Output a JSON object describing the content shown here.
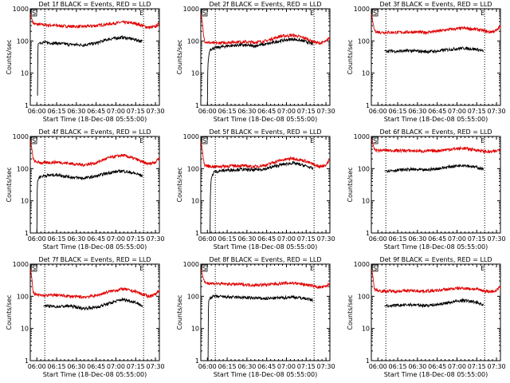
{
  "figure": {
    "xlabel": "Start Time (18-Dec-08 05:55:00)",
    "ylabel": "Counts/sec",
    "x_ticks": [
      "06:00",
      "06:15",
      "06:30",
      "06:45",
      "07:00",
      "07:15",
      "07:30"
    ],
    "y_ticks": [
      "1",
      "10",
      "100",
      "1000"
    ],
    "colors": {
      "events": "#000000",
      "lld": "#e00000",
      "axes": "#000000",
      "background": "#ffffff"
    }
  },
  "chart_data": [
    {
      "type": "line",
      "title": "Det 1f BLACK = Events, RED = LLD",
      "xlabel": "Start Time (18-Dec-08 05:55:00)",
      "ylabel": "Counts/sec",
      "x_unit": "minutes since 05:55",
      "xlim": [
        0,
        98
      ],
      "yscale": "log",
      "ylim": [
        1,
        1000
      ],
      "markers": {
        "left_label": "S",
        "right_label": "E",
        "dotted_lines_min": [
          11,
          86
        ]
      },
      "series": [
        {
          "name": "LLD",
          "color": "#e00000",
          "x": [
            0,
            1,
            2,
            3,
            5,
            10,
            20,
            30,
            40,
            50,
            60,
            70,
            80,
            85,
            90,
            95,
            98
          ],
          "y": [
            700,
            500,
            380,
            340,
            330,
            320,
            300,
            285,
            280,
            300,
            340,
            380,
            350,
            300,
            260,
            280,
            350
          ]
        },
        {
          "name": "Events",
          "color": "#000000",
          "x": [
            5.5,
            6,
            7,
            10,
            20,
            30,
            40,
            50,
            60,
            70,
            80,
            85
          ],
          "y": [
            2,
            80,
            88,
            90,
            85,
            78,
            75,
            85,
            115,
            130,
            110,
            95
          ]
        }
      ]
    },
    {
      "type": "line",
      "title": "Det 2f BLACK = Events, RED = LLD",
      "xlabel": "Start Time (18-Dec-08 05:55:00)",
      "ylabel": "Counts/sec",
      "x_unit": "minutes since 05:55",
      "xlim": [
        0,
        98
      ],
      "yscale": "log",
      "ylim": [
        1,
        1000
      ],
      "markers": {
        "left_label": "S",
        "right_label": "E",
        "dotted_lines_min": [
          11,
          86
        ]
      },
      "series": [
        {
          "name": "LLD",
          "color": "#e00000",
          "x": [
            0,
            1,
            2,
            3,
            5,
            10,
            20,
            30,
            40,
            50,
            60,
            70,
            80,
            85,
            90,
            95,
            98
          ],
          "y": [
            700,
            400,
            150,
            100,
            90,
            85,
            90,
            95,
            90,
            100,
            140,
            150,
            120,
            95,
            85,
            95,
            130
          ]
        },
        {
          "name": "Events",
          "color": "#000000",
          "x": [
            5,
            5.5,
            7,
            10,
            20,
            30,
            40,
            50,
            60,
            70,
            80,
            85
          ],
          "y": [
            1,
            20,
            55,
            60,
            70,
            75,
            70,
            80,
            100,
            115,
            95,
            80
          ]
        }
      ]
    },
    {
      "type": "line",
      "title": "Det 3f BLACK = Events, RED = LLD",
      "xlabel": "Start Time (18-Dec-08 05:55:00)",
      "ylabel": "Counts/sec",
      "x_unit": "minutes since 05:55",
      "xlim": [
        0,
        98
      ],
      "yscale": "log",
      "ylim": [
        1,
        1000
      ],
      "markers": {
        "left_label": "S",
        "right_label": "E",
        "dotted_lines_min": [
          11,
          86
        ]
      },
      "series": [
        {
          "name": "LLD",
          "color": "#e00000",
          "x": [
            0,
            1,
            2,
            3,
            5,
            10,
            20,
            30,
            40,
            50,
            60,
            70,
            80,
            85,
            90,
            95,
            98
          ],
          "y": [
            700,
            400,
            240,
            200,
            190,
            185,
            185,
            190,
            185,
            200,
            230,
            250,
            230,
            210,
            190,
            210,
            280
          ]
        },
        {
          "name": "Events",
          "color": "#000000",
          "x": [
            10,
            20,
            30,
            40,
            50,
            60,
            70,
            80,
            85
          ],
          "y": [
            50,
            48,
            50,
            47,
            48,
            55,
            60,
            55,
            48
          ]
        }
      ]
    },
    {
      "type": "line",
      "title": "Det 4f BLACK = Events, RED = LLD",
      "xlabel": "Start Time (18-Dec-08 05:55:00)",
      "ylabel": "Counts/sec",
      "x_unit": "minutes since 05:55",
      "xlim": [
        0,
        98
      ],
      "yscale": "log",
      "ylim": [
        1,
        1000
      ],
      "markers": {
        "left_label": "S",
        "right_label": "E",
        "dotted_lines_min": [
          11,
          86
        ]
      },
      "series": [
        {
          "name": "LLD",
          "color": "#e00000",
          "x": [
            0,
            1,
            2,
            3,
            5,
            10,
            20,
            30,
            40,
            50,
            60,
            70,
            80,
            85,
            90,
            95,
            98
          ],
          "y": [
            750,
            450,
            220,
            170,
            160,
            150,
            160,
            145,
            130,
            150,
            220,
            260,
            200,
            160,
            140,
            160,
            220
          ]
        },
        {
          "name": "Events",
          "color": "#000000",
          "x": [
            5,
            5.5,
            7,
            10,
            20,
            30,
            40,
            50,
            60,
            70,
            80,
            85
          ],
          "y": [
            1,
            40,
            55,
            60,
            65,
            55,
            50,
            58,
            75,
            85,
            70,
            60
          ]
        }
      ]
    },
    {
      "type": "line",
      "title": "Det 5f BLACK = Events, RED = LLD",
      "xlabel": "Start Time (18-Dec-08 05:55:00)",
      "ylabel": "Counts/sec",
      "x_unit": "minutes since 05:55",
      "xlim": [
        0,
        98
      ],
      "yscale": "log",
      "ylim": [
        1,
        1000
      ],
      "markers": {
        "left_label": "S",
        "right_label": "E",
        "dotted_lines_min": [
          11,
          86
        ]
      },
      "series": [
        {
          "name": "LLD",
          "color": "#e00000",
          "x": [
            0,
            1,
            2,
            3,
            5,
            10,
            20,
            30,
            40,
            50,
            60,
            70,
            80,
            85,
            90,
            95,
            98
          ],
          "y": [
            700,
            400,
            180,
            130,
            120,
            115,
            120,
            125,
            115,
            130,
            180,
            210,
            170,
            135,
            115,
            130,
            190
          ]
        },
        {
          "name": "Events",
          "color": "#000000",
          "x": [
            7,
            8,
            10,
            20,
            30,
            40,
            50,
            60,
            70,
            80,
            85
          ],
          "y": [
            1,
            50,
            80,
            90,
            95,
            90,
            100,
            130,
            150,
            120,
            100
          ]
        }
      ]
    },
    {
      "type": "line",
      "title": "Det 6f BLACK = Events, RED = LLD",
      "xlabel": "Start Time (18-Dec-08 05:55:00)",
      "ylabel": "Counts/sec",
      "x_unit": "minutes since 05:55",
      "xlim": [
        0,
        98
      ],
      "yscale": "log",
      "ylim": [
        1,
        1000
      ],
      "markers": {
        "left_label": "S",
        "right_label": "E",
        "dotted_lines_min": [
          11,
          86
        ]
      },
      "series": [
        {
          "name": "LLD",
          "color": "#e00000",
          "x": [
            0,
            1,
            2,
            3,
            5,
            10,
            20,
            30,
            40,
            50,
            60,
            70,
            80,
            85,
            90,
            95,
            98
          ],
          "y": [
            800,
            600,
            420,
            380,
            370,
            370,
            365,
            360,
            350,
            360,
            400,
            430,
            380,
            350,
            330,
            350,
            420
          ]
        },
        {
          "name": "Events",
          "color": "#000000",
          "x": [
            10,
            20,
            30,
            40,
            50,
            60,
            70,
            80,
            85
          ],
          "y": [
            85,
            90,
            95,
            90,
            100,
            115,
            130,
            110,
            95
          ]
        }
      ]
    },
    {
      "type": "line",
      "title": "Det 7f BLACK = Events, RED = LLD",
      "xlabel": "Start Time (18-Dec-08 05:55:00)",
      "ylabel": "Counts/sec",
      "x_unit": "minutes since 05:55",
      "xlim": [
        0,
        98
      ],
      "yscale": "log",
      "ylim": [
        1,
        1000
      ],
      "markers": {
        "left_label": "S",
        "right_label": "E",
        "dotted_lines_min": [
          11,
          86
        ]
      },
      "series": [
        {
          "name": "LLD",
          "color": "#e00000",
          "x": [
            0,
            1,
            2,
            3,
            5,
            10,
            20,
            30,
            40,
            50,
            60,
            70,
            80,
            85,
            90,
            95,
            98
          ],
          "y": [
            700,
            400,
            150,
            120,
            110,
            105,
            110,
            100,
            95,
            105,
            140,
            170,
            140,
            115,
            100,
            115,
            160
          ]
        },
        {
          "name": "Events",
          "color": "#000000",
          "x": [
            10,
            20,
            30,
            40,
            50,
            60,
            70,
            80,
            85
          ],
          "y": [
            50,
            48,
            50,
            42,
            45,
            60,
            80,
            65,
            50
          ]
        }
      ]
    },
    {
      "type": "line",
      "title": "Det 8f BLACK = Events, RED = LLD",
      "xlabel": "Start Time (18-Dec-08 05:55:00)",
      "ylabel": "Counts/sec",
      "x_unit": "minutes since 05:55",
      "xlim": [
        0,
        98
      ],
      "yscale": "log",
      "ylim": [
        1,
        1000
      ],
      "markers": {
        "left_label": "S",
        "right_label": "E",
        "dotted_lines_min": [
          11,
          86
        ]
      },
      "series": [
        {
          "name": "LLD",
          "color": "#e00000",
          "x": [
            0,
            1,
            2,
            3,
            5,
            10,
            20,
            30,
            40,
            50,
            60,
            70,
            80,
            85,
            90,
            95,
            98
          ],
          "y": [
            700,
            500,
            320,
            270,
            260,
            250,
            240,
            235,
            225,
            230,
            250,
            260,
            230,
            210,
            190,
            200,
            250
          ]
        },
        {
          "name": "Events",
          "color": "#000000",
          "x": [
            5.5,
            6,
            7,
            10,
            20,
            30,
            40,
            50,
            60,
            70,
            80,
            85
          ],
          "y": [
            1,
            70,
            90,
            100,
            95,
            92,
            88,
            85,
            90,
            95,
            85,
            75
          ]
        }
      ]
    },
    {
      "type": "line",
      "title": "Det 9f BLACK = Events, RED = LLD",
      "xlabel": "Start Time (18-Dec-08 05:55:00)",
      "ylabel": "Counts/sec",
      "x_unit": "minutes since 05:55",
      "xlim": [
        0,
        98
      ],
      "yscale": "log",
      "ylim": [
        1,
        1000
      ],
      "markers": {
        "left_label": "S",
        "right_label": "E",
        "dotted_lines_min": [
          11,
          86
        ]
      },
      "series": [
        {
          "name": "LLD",
          "color": "#e00000",
          "x": [
            0,
            1,
            2,
            3,
            5,
            10,
            20,
            30,
            40,
            50,
            60,
            70,
            80,
            85,
            90,
            95,
            98
          ],
          "y": [
            700,
            450,
            200,
            160,
            150,
            145,
            145,
            150,
            145,
            150,
            170,
            180,
            165,
            150,
            140,
            150,
            200
          ]
        },
        {
          "name": "Events",
          "color": "#000000",
          "x": [
            10,
            20,
            30,
            40,
            50,
            60,
            70,
            80,
            85
          ],
          "y": [
            50,
            52,
            55,
            52,
            55,
            65,
            75,
            65,
            55
          ]
        }
      ]
    }
  ]
}
